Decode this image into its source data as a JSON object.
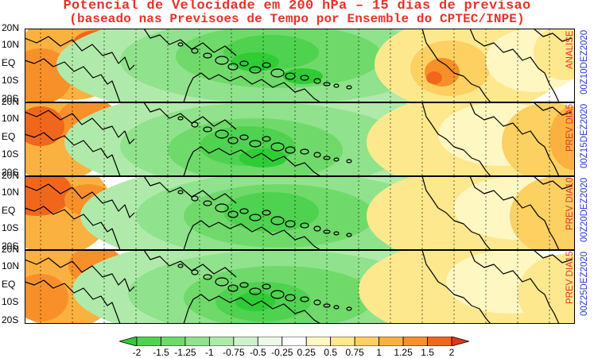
{
  "title": {
    "line1": "Potencial de Velocidade em 200 hPa – 15 dias de previsao",
    "line2": "(baseado nas Previsoes de Tempo por Ensemble do CPTEC/INPE)"
  },
  "lat_labels": [
    "20N",
    "10N",
    "EQ",
    "10S",
    "20S"
  ],
  "panels": [
    {
      "label": "ANALISE",
      "date": "00Z10DEZ2020"
    },
    {
      "label": "PREV DIA5",
      "date": "00Z15DEZ2020"
    },
    {
      "label": "PREV DIA10",
      "date": "00Z20DEZ2020"
    },
    {
      "label": "PREV DIA15",
      "date": "00Z25DEZ2020"
    }
  ],
  "colorbar": {
    "ticks": [
      "-2",
      "-1.5",
      "-1.25",
      "-1",
      "-0.75",
      "-0.5",
      "-0.25",
      "0.25",
      "0.5",
      "0.75",
      "1",
      "1.25",
      "1.5",
      "2"
    ],
    "colors": [
      "#2fcc35",
      "#4fd24f",
      "#6fda6a",
      "#90e28c",
      "#b0eaaa",
      "#cff3c9",
      "#ebf9e8",
      "#ffffff",
      "#fff7c2",
      "#fde88e",
      "#fdd062",
      "#fbb13f",
      "#f79029",
      "#f0671c",
      "#e23616"
    ]
  }
}
